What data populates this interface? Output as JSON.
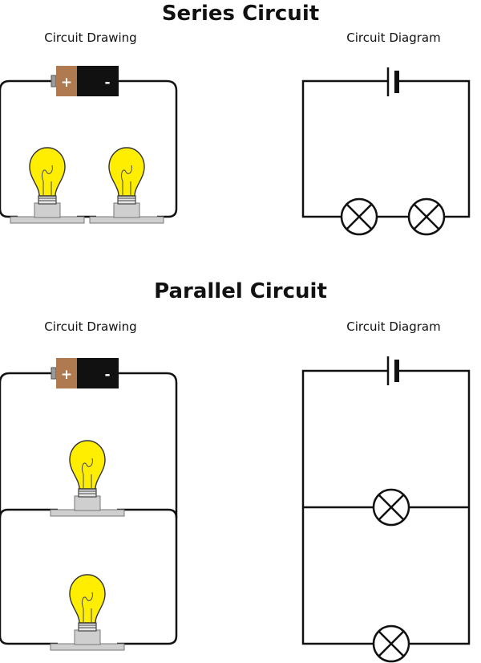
{
  "series": {
    "title": "Series Circuit",
    "drawing_label": "Circuit Drawing",
    "diagram_label": "Circuit Diagram"
  },
  "parallel": {
    "title": "Parallel Circuit",
    "drawing_label": "Circuit Drawing",
    "diagram_label": "Circuit Diagram"
  },
  "battery": {
    "plus": "+",
    "minus": "-"
  },
  "colors": {
    "wire": "#111111",
    "battery_positive": "#b07a50",
    "battery_negative": "#111111",
    "bulb_glass": "#ffee00",
    "bulb_base": "#cfcfcf",
    "socket": "#cfcfcf"
  }
}
